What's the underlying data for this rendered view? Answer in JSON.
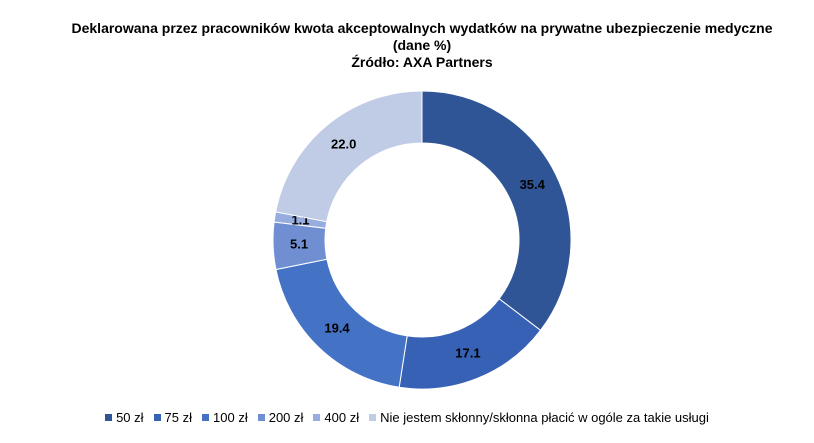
{
  "chart_data": {
    "type": "doughnut",
    "title": "Deklarowana przez pracowników kwota akceptowalnych wydatków  na prywatne ubezpieczenie medyczne (dane %)",
    "subtitle": "Źródło: AXA Partners",
    "categories": [
      "50 zł",
      "75 zł",
      "100 zł",
      "200 zł",
      "400 zł",
      "Nie jestem skłonny/skłonna płacić w ogóle za takie usługi"
    ],
    "values": [
      35.4,
      17.1,
      19.4,
      5.1,
      1.1,
      22.0
    ],
    "value_labels": [
      "35.4",
      "17.1",
      "19.4",
      "5.1",
      "1.1",
      "22.0"
    ],
    "colors": [
      "#2f5597",
      "#3761b4",
      "#4472c4",
      "#6f8fd2",
      "#98addf",
      "#c0cbe6"
    ],
    "legend": "bottom"
  }
}
